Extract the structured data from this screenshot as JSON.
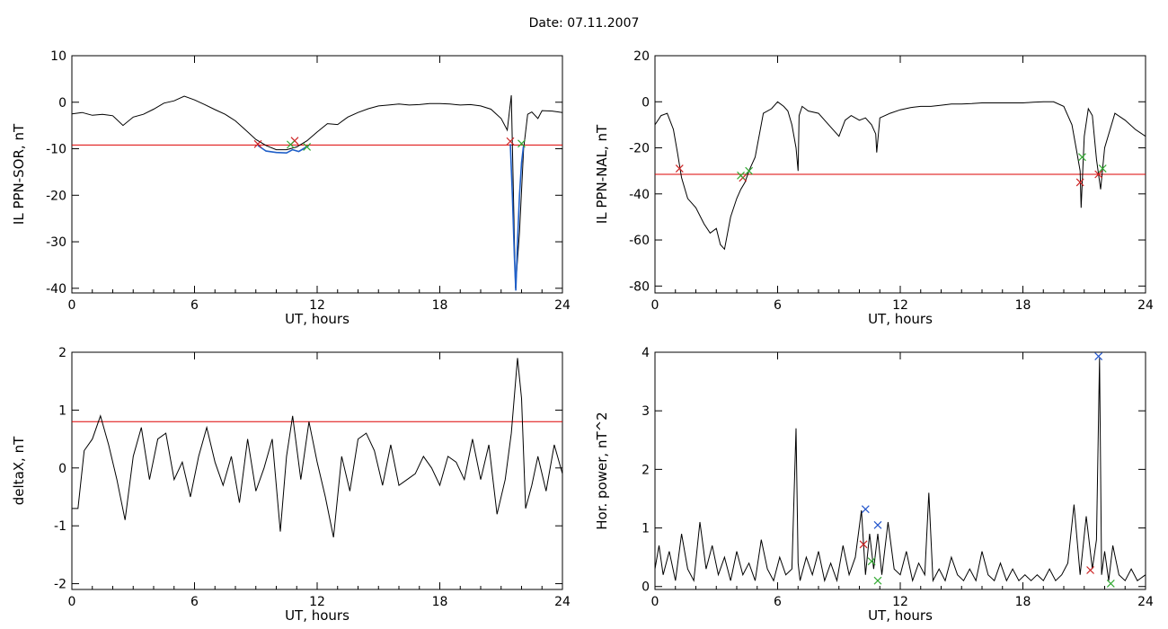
{
  "page": {
    "title": "Date:  07.11.2007"
  },
  "chart_data": [
    {
      "type": "line",
      "ylabel": "IL PPN-SOR, nT",
      "xlabel": "UT, hours",
      "xlim": [
        0,
        24
      ],
      "ylim": [
        -41,
        10
      ],
      "xticks": [
        0,
        6,
        12,
        18,
        24
      ],
      "yticks": [
        10,
        0,
        -10,
        -20,
        -30,
        -40
      ],
      "threshold": -9.2,
      "series": [
        {
          "color": "#000000",
          "x": [
            0,
            0.5,
            1,
            1.5,
            2,
            2.5,
            3,
            3.5,
            4,
            4.5,
            5,
            5.5,
            6,
            6.5,
            7,
            7.5,
            8,
            8.5,
            9,
            9.5,
            10,
            10.5,
            11,
            11.5,
            12,
            12.5,
            13,
            13.5,
            14,
            14.5,
            15,
            15.5,
            16,
            16.5,
            17,
            17.5,
            18,
            18.5,
            19,
            19.5,
            20,
            20.5,
            21,
            21.3,
            21.5,
            21.7,
            21.9,
            22.1,
            22.3,
            22.5,
            22.8,
            23,
            23.5,
            24
          ],
          "y": [
            -2.5,
            -2.2,
            -2.8,
            -2.6,
            -2.9,
            -5,
            -3.2,
            -2.6,
            -1.5,
            -0.2,
            0.3,
            1.3,
            0.5,
            -0.5,
            -1.6,
            -2.6,
            -4,
            -6,
            -8,
            -9.3,
            -10.2,
            -10.2,
            -9.6,
            -8.3,
            -6.4,
            -4.6,
            -4.8,
            -3.2,
            -2.2,
            -1.4,
            -0.8,
            -0.6,
            -0.4,
            -0.6,
            -0.5,
            -0.3,
            -0.3,
            -0.4,
            -0.6,
            -0.5,
            -0.8,
            -1.5,
            -3.5,
            -6,
            1.5,
            -40,
            -28,
            -10,
            -2.6,
            -2.1,
            -3.5,
            -1.8,
            -1.9,
            -2.2
          ]
        },
        {
          "color": "#1f5fc8",
          "x": [
            9.1,
            9.5,
            10,
            10.5,
            10.8,
            11.1,
            11.4,
            11.6
          ],
          "y": [
            -9.3,
            -10.5,
            -10.8,
            -10.9,
            -10.2,
            -10.6,
            -9.8,
            -9.3
          ]
        },
        {
          "color": "#1f5fc8",
          "x": [
            21.45,
            21.55,
            21.65,
            21.72,
            21.8,
            21.9,
            22,
            22.1
          ],
          "y": [
            -9,
            -20,
            -33,
            -40.5,
            -30,
            -20,
            -13,
            -9.2
          ]
        }
      ],
      "markers": [
        {
          "color": "#cc2222",
          "x": [
            9.1,
            10.9,
            21.45
          ],
          "y": [
            -9,
            -8.3,
            -8.4
          ]
        },
        {
          "color": "#33aa33",
          "x": [
            10.7,
            11.5,
            22.0
          ],
          "y": [
            -9.1,
            -9.6,
            -8.9
          ]
        }
      ]
    },
    {
      "type": "line",
      "ylabel": "IL PPN-NAL, nT",
      "xlabel": "UT, hours",
      "xlim": [
        0,
        24
      ],
      "ylim": [
        -83,
        20
      ],
      "xticks": [
        0,
        6,
        12,
        18,
        24
      ],
      "yticks": [
        20,
        0,
        -20,
        -40,
        -60,
        -80
      ],
      "threshold": -31.5,
      "series": [
        {
          "color": "#000000",
          "x": [
            0,
            0.3,
            0.6,
            0.9,
            1.1,
            1.3,
            1.6,
            2,
            2.4,
            2.7,
            3,
            3.2,
            3.4,
            3.7,
            4,
            4.2,
            4.4,
            4.6,
            4.9,
            5.3,
            5.7,
            6,
            6.3,
            6.5,
            6.7,
            6.9,
            7,
            7.05,
            7.2,
            7.5,
            8,
            8.5,
            9,
            9.3,
            9.6,
            10,
            10.3,
            10.6,
            10.8,
            10.85,
            11,
            11.5,
            12,
            12.5,
            13,
            13.5,
            14,
            14.5,
            15,
            15.5,
            16,
            16.5,
            17,
            17.5,
            18,
            18.5,
            19,
            19.5,
            20,
            20.4,
            20.6,
            20.8,
            20.85,
            21,
            21.2,
            21.4,
            21.6,
            21.8,
            22,
            22.5,
            23,
            23.5,
            24
          ],
          "y": [
            -10,
            -6,
            -5,
            -12,
            -22,
            -33,
            -42,
            -46,
            -53,
            -57,
            -55,
            -62,
            -64,
            -50,
            -42,
            -38,
            -35,
            -30,
            -24,
            -5,
            -3,
            0,
            -2,
            -4,
            -10,
            -20,
            -30,
            -6,
            -2,
            -4,
            -5,
            -10,
            -15,
            -8,
            -6,
            -8,
            -7,
            -10,
            -14,
            -22,
            -7,
            -5,
            -3.5,
            -2.5,
            -2,
            -2,
            -1.5,
            -1,
            -1,
            -0.8,
            -0.5,
            -0.5,
            -0.5,
            -0.5,
            -0.5,
            -0.2,
            0,
            0,
            -2,
            -10,
            -20,
            -30,
            -46,
            -15,
            -3,
            -6,
            -25,
            -38,
            -20,
            -5,
            -8,
            -12,
            -15
          ]
        }
      ],
      "markers": [
        {
          "color": "#cc2222",
          "x": [
            1.2,
            4.3,
            20.8,
            21.7
          ],
          "y": [
            -29,
            -33,
            -35,
            -31.5
          ]
        },
        {
          "color": "#33aa33",
          "x": [
            4.2,
            4.6,
            20.9,
            21.9
          ],
          "y": [
            -32,
            -30,
            -24,
            -29
          ]
        }
      ]
    },
    {
      "type": "line",
      "ylabel": "deltaX, nT",
      "xlabel": "UT, hours",
      "xlim": [
        0,
        24
      ],
      "ylim": [
        -2.1,
        2
      ],
      "xticks": [
        0,
        6,
        12,
        18,
        24
      ],
      "yticks": [
        2,
        1,
        0,
        -1,
        -2
      ],
      "threshold": 0.8,
      "series": [
        {
          "color": "#000000",
          "x": [
            0,
            0.3,
            0.6,
            1,
            1.4,
            1.8,
            2.2,
            2.6,
            3,
            3.4,
            3.8,
            4.2,
            4.6,
            5,
            5.4,
            5.8,
            6.2,
            6.6,
            7,
            7.4,
            7.8,
            8.2,
            8.6,
            9,
            9.4,
            9.8,
            10.2,
            10.5,
            10.8,
            11.2,
            11.6,
            12,
            12.4,
            12.8,
            13.2,
            13.6,
            14,
            14.4,
            14.8,
            15.2,
            15.6,
            16,
            16.4,
            16.8,
            17.2,
            17.6,
            18,
            18.4,
            18.8,
            19.2,
            19.6,
            20,
            20.4,
            20.8,
            21.2,
            21.5,
            21.8,
            22,
            22.2,
            22.5,
            22.8,
            23.2,
            23.6,
            24
          ],
          "y": [
            -0.7,
            -0.7,
            0.3,
            0.5,
            0.9,
            0.4,
            -0.2,
            -0.9,
            0.2,
            0.7,
            -0.2,
            0.5,
            0.6,
            -0.2,
            0.1,
            -0.5,
            0.2,
            0.7,
            0.1,
            -0.3,
            0.2,
            -0.6,
            0.5,
            -0.4,
            0,
            0.5,
            -1.1,
            0.2,
            0.9,
            -0.2,
            0.8,
            0.1,
            -0.5,
            -1.2,
            0.2,
            -0.4,
            0.5,
            0.6,
            0.3,
            -0.3,
            0.4,
            -0.3,
            -0.2,
            -0.1,
            0.2,
            0,
            -0.3,
            0.2,
            0.1,
            -0.2,
            0.5,
            -0.2,
            0.4,
            -0.8,
            -0.2,
            0.6,
            1.9,
            1.2,
            -0.7,
            -0.3,
            0.2,
            -0.4,
            0.4,
            -0.1
          ]
        }
      ],
      "markers": []
    },
    {
      "type": "line",
      "ylabel": "Hor. power, nT^2",
      "xlabel": "UT, hours",
      "xlim": [
        0,
        24
      ],
      "ylim": [
        -0.05,
        4
      ],
      "xticks": [
        0,
        6,
        12,
        18,
        24
      ],
      "yticks": [
        4,
        3,
        2,
        1,
        0
      ],
      "series": [
        {
          "color": "#000000",
          "x": [
            0,
            0.2,
            0.4,
            0.7,
            1,
            1.3,
            1.6,
            1.9,
            2.2,
            2.5,
            2.8,
            3.1,
            3.4,
            3.7,
            4,
            4.3,
            4.6,
            4.9,
            5.2,
            5.5,
            5.8,
            6.1,
            6.4,
            6.7,
            6.9,
            7,
            7.1,
            7.4,
            7.7,
            8,
            8.3,
            8.6,
            8.9,
            9.2,
            9.5,
            9.8,
            10.1,
            10.3,
            10.5,
            10.7,
            10.9,
            11.1,
            11.4,
            11.7,
            12,
            12.3,
            12.6,
            12.9,
            13.2,
            13.4,
            13.6,
            13.9,
            14.2,
            14.5,
            14.8,
            15.1,
            15.4,
            15.7,
            16,
            16.3,
            16.6,
            16.9,
            17.2,
            17.5,
            17.8,
            18.1,
            18.4,
            18.7,
            19,
            19.3,
            19.6,
            19.9,
            20.2,
            20.5,
            20.8,
            21.1,
            21.4,
            21.6,
            21.75,
            21.85,
            22,
            22.2,
            22.4,
            22.7,
            23,
            23.3,
            23.6,
            24
          ],
          "y": [
            0.3,
            0.7,
            0.2,
            0.6,
            0.1,
            0.9,
            0.3,
            0.1,
            1.1,
            0.3,
            0.7,
            0.2,
            0.5,
            0.1,
            0.6,
            0.2,
            0.4,
            0.1,
            0.8,
            0.3,
            0.1,
            0.5,
            0.2,
            0.3,
            2.7,
            0.4,
            0.1,
            0.5,
            0.2,
            0.6,
            0.1,
            0.4,
            0.1,
            0.7,
            0.2,
            0.5,
            1.3,
            0.2,
            0.9,
            0.3,
            0.9,
            0.2,
            1.1,
            0.3,
            0.2,
            0.6,
            0.1,
            0.4,
            0.2,
            1.6,
            0.1,
            0.3,
            0.1,
            0.5,
            0.2,
            0.1,
            0.3,
            0.1,
            0.6,
            0.2,
            0.1,
            0.4,
            0.1,
            0.3,
            0.1,
            0.2,
            0.1,
            0.2,
            0.1,
            0.3,
            0.1,
            0.2,
            0.4,
            1.4,
            0.2,
            1.2,
            0.3,
            0.8,
            3.9,
            0.2,
            0.6,
            0.1,
            0.7,
            0.2,
            0.1,
            0.3,
            0.1,
            0.2
          ]
        }
      ],
      "markers": [
        {
          "color": "#2255cc",
          "x": [
            10.3,
            10.9,
            21.7
          ],
          "y": [
            1.32,
            1.05,
            3.93
          ]
        },
        {
          "color": "#cc2222",
          "x": [
            10.2,
            21.3
          ],
          "y": [
            0.72,
            0.28
          ]
        },
        {
          "color": "#33aa33",
          "x": [
            10.6,
            10.9,
            22.3
          ],
          "y": [
            0.43,
            0.1,
            0.05
          ]
        }
      ]
    }
  ]
}
